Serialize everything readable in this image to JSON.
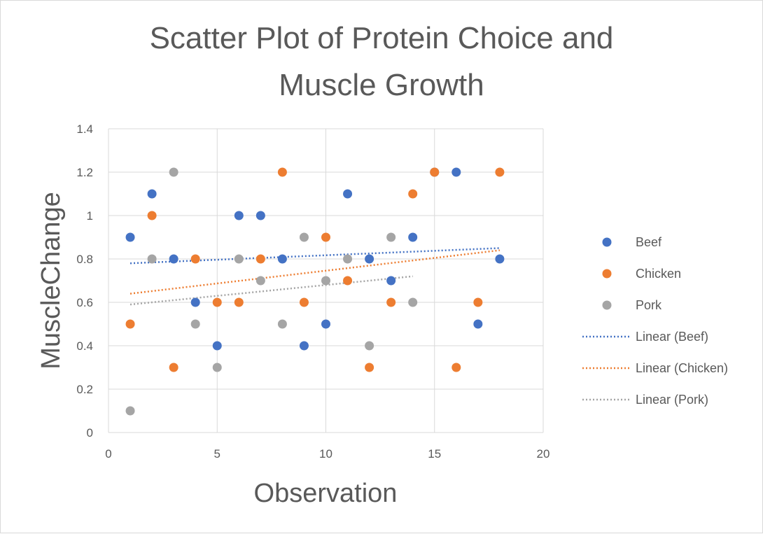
{
  "chart_data": {
    "type": "scatter",
    "title": "Scatter Plot of Protein Choice and Muscle Growth",
    "title_lines": [
      "Scatter Plot of Protein Choice and",
      "Muscle Growth"
    ],
    "xlabel": "Observation",
    "ylabel": "MuscleChange",
    "xlim": [
      0,
      20
    ],
    "ylim": [
      0,
      1.4
    ],
    "x_ticks": [
      "0",
      "5",
      "10",
      "15",
      "20"
    ],
    "y_ticks": [
      "0",
      "0.2",
      "0.4",
      "0.6",
      "0.8",
      "1",
      "1.2",
      "1.4"
    ],
    "grid": true,
    "legend_position": "right",
    "series": [
      {
        "name": "Beef",
        "color": "#4472c4",
        "x": [
          1,
          2,
          3,
          4,
          5,
          6,
          7,
          8,
          9,
          10,
          11,
          12,
          13,
          14,
          15,
          16,
          17,
          18
        ],
        "y": [
          0.9,
          1.1,
          0.8,
          0.6,
          0.4,
          1.0,
          1.0,
          0.8,
          0.4,
          0.5,
          1.1,
          0.8,
          0.7,
          0.9,
          1.2,
          1.2,
          0.5,
          0.8
        ]
      },
      {
        "name": "Chicken",
        "color": "#ed7d31",
        "x": [
          1,
          2,
          3,
          4,
          5,
          6,
          7,
          8,
          9,
          10,
          11,
          12,
          13,
          14,
          15,
          16,
          17,
          18
        ],
        "y": [
          0.5,
          1.0,
          0.3,
          0.8,
          0.6,
          0.6,
          0.8,
          1.2,
          0.6,
          0.9,
          0.7,
          0.3,
          0.6,
          1.1,
          1.2,
          0.3,
          0.6,
          1.2
        ]
      },
      {
        "name": "Pork",
        "color": "#a5a5a5",
        "x": [
          1,
          2,
          3,
          4,
          5,
          6,
          7,
          8,
          9,
          10,
          11,
          12,
          13,
          14
        ],
        "y": [
          0.1,
          0.8,
          1.2,
          0.5,
          0.3,
          0.8,
          0.7,
          0.5,
          0.9,
          0.7,
          0.8,
          0.4,
          0.9,
          0.6
        ]
      }
    ],
    "trendlines": [
      {
        "name": "Linear (Beef)",
        "color": "#4472c4",
        "x": [
          1,
          18
        ],
        "y": [
          0.78,
          0.85
        ]
      },
      {
        "name": "Linear (Chicken)",
        "color": "#ed7d31",
        "x": [
          1,
          18
        ],
        "y": [
          0.64,
          0.84
        ]
      },
      {
        "name": "Linear (Pork)",
        "color": "#a5a5a5",
        "x": [
          1,
          14
        ],
        "y": [
          0.59,
          0.72
        ]
      }
    ]
  }
}
